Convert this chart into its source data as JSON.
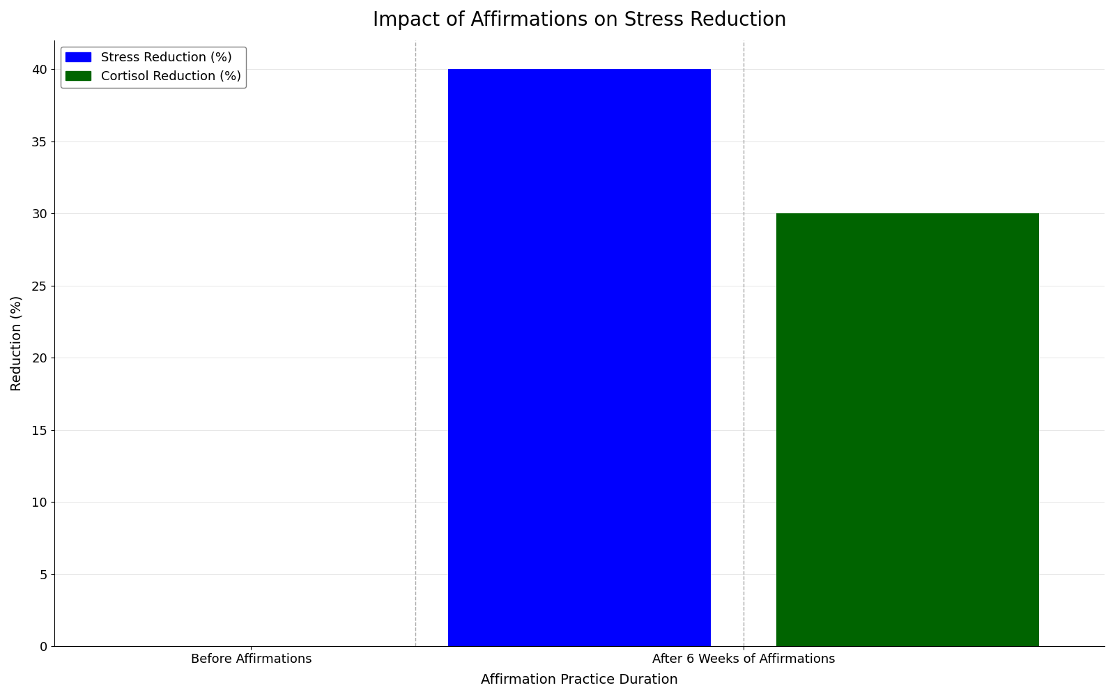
{
  "title": "Impact of Affirmations on Stress Reduction",
  "xlabel": "Affirmation Practice Duration",
  "ylabel": "Reduction (%)",
  "categories": [
    "Before Affirmations",
    "After 6 Weeks of Affirmations"
  ],
  "stress_values": [
    0,
    40
  ],
  "cortisol_values": [
    0,
    30
  ],
  "stress_color": "#0000ff",
  "cortisol_color": "#006400",
  "ylim": [
    0,
    42
  ],
  "yticks": [
    0,
    5,
    10,
    15,
    20,
    25,
    30,
    35,
    40
  ],
  "legend_labels": [
    "Stress Reduction (%)",
    "Cortisol Reduction (%)"
  ],
  "bar_width": 0.4,
  "background_color": "#ffffff",
  "title_fontsize": 20,
  "label_fontsize": 14,
  "tick_fontsize": 13,
  "legend_fontsize": 13,
  "vline_style": "dotted",
  "vline_color": "#aaaaaa"
}
